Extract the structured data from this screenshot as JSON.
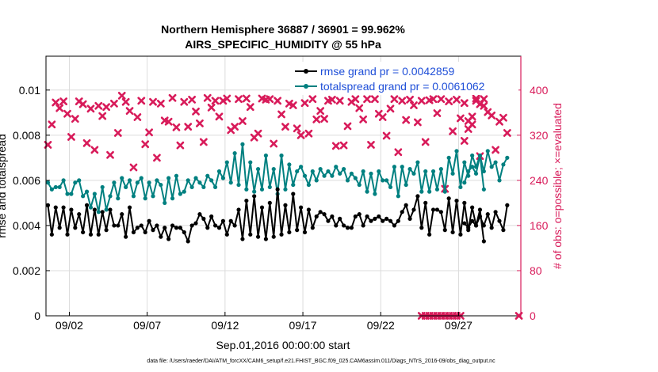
{
  "chart_data": {
    "type": "line",
    "title": "Northern Hemisphere 36887 / 36901 = 99.962%",
    "subtitle": "AIRS_SPECIFIC_HUMIDITY @ 55 hPa",
    "xlabel": "Sep.01,2016 00:00:00 start",
    "ylabel": "rmse and totalspread",
    "y2label": "# of obs: o=possible; ×=evaluated",
    "footnote": "data file: /Users/raeder/DAI/ATM_forcXX/CAM6_setup/f.e21.FHIST_BGC.f09_025.CAM6assim.011/Diags_NTrS_2016-09/obs_diag_output.nc",
    "xlim": [
      0.5,
      31.0
    ],
    "ylim": [
      0,
      0.0115
    ],
    "y2lim": [
      0,
      460
    ],
    "x_ticks": [
      2,
      7,
      12,
      17,
      22,
      27
    ],
    "x_tick_labels": [
      "09/02",
      "09/07",
      "09/12",
      "09/17",
      "09/22",
      "09/27"
    ],
    "y_ticks": [
      0,
      0.002,
      0.004,
      0.006,
      0.008,
      0.01
    ],
    "y_tick_labels": [
      "0",
      "0.002",
      "0.004",
      "0.006",
      "0.008",
      "0.01"
    ],
    "y2_ticks": [
      0,
      80,
      160,
      240,
      320,
      400
    ],
    "y2_tick_labels": [
      "0",
      "80",
      "160",
      "240",
      "320",
      "400"
    ],
    "grid": true,
    "legend_position": "top-right",
    "series": [
      {
        "name": "rmse grand pr = 0.0042859",
        "color": "#000000",
        "marker": "circle",
        "axis": "left",
        "segments": [
          {
            "x_start": 0.625,
            "dx": 0.25,
            "values": [
              0.0049,
              0.0036,
              0.0048,
              0.0039,
              0.0048,
              0.0036,
              0.0047,
              0.0039,
              0.0045,
              0.0037,
              0.0049,
              0.0036,
              0.0047,
              0.0036,
              0.0046,
              0.0038,
              0.0047,
              0.004,
              0.004,
              0.0045,
              0.0035,
              0.0048,
              0.0037,
              0.0039,
              0.004,
              0.0037,
              0.0042,
              0.0038,
              0.004,
              0.0035,
              0.0039,
              0.0034,
              0.004,
              0.0039,
              0.0039,
              0.0037,
              0.0033,
              0.004,
              0.0041,
              0.0045,
              0.0043,
              0.0039,
              0.0044,
              0.004,
              0.0039,
              0.0042,
              0.0036,
              0.0042,
              0.004,
              0.0047,
              0.0034,
              0.0051,
              0.0036,
              0.0053,
              0.0035,
              0.0048,
              0.0034,
              0.005,
              0.0035,
              0.0056,
              0.0036,
              0.0049,
              0.0037,
              0.0054,
              0.0038,
              0.0048,
              0.0037,
              0.0047,
              0.0039,
              0.0044,
              0.0046,
              0.0045,
              0.0042,
              0.0044,
              0.004,
              0.0043,
              0.004,
              0.0039,
              0.0039,
              0.0044,
              0.0045,
              0.004,
              0.0044,
              0.0042,
              0.0043,
              0.0044,
              0.0042,
              0.0043,
              0.0042,
              0.004,
              0.0042,
              0.0046,
              0.0049,
              0.0043,
              0.0047,
              0.0053,
              0.0039,
              0.005,
              0.0036,
              0.0047,
              0.0047,
              0.0046,
              0.0038,
              0.0052,
              0.0037,
              0.0051,
              0.0036,
              0.005,
              0.0038,
              0.0048,
              0.004,
              0.0047,
              0.0033
            ]
          },
          {
            "x_start": 27.375,
            "dx": 0.25,
            "values": [
              0.0041,
              0.0039,
              0.0042,
              0.004,
              0.0044,
              0.004,
              0.0045,
              0.0039,
              0.0046,
              0.0042,
              0.0038,
              0.0049
            ]
          }
        ]
      },
      {
        "name": "totalspread grand pr = 0.0061062",
        "color": "#008080",
        "marker": "circle",
        "axis": "left",
        "segments": [
          {
            "x_start": 0.625,
            "dx": 0.25,
            "values": [
              0.0059,
              0.0056,
              0.0057,
              0.0057,
              0.006,
              0.0054,
              0.0054,
              0.0059,
              0.006,
              0.0053,
              0.0055,
              0.0048,
              0.0054,
              0.0046,
              0.0057,
              0.0047,
              0.0053,
              0.0059,
              0.0052,
              0.0061,
              0.0057,
              0.006,
              0.0053,
              0.0059,
              0.0061,
              0.0052,
              0.0059,
              0.0053,
              0.006,
              0.0058,
              0.005,
              0.0061,
              0.0052,
              0.0062,
              0.0054,
              0.0055,
              0.006,
              0.0057,
              0.0061,
              0.0059,
              0.0057,
              0.0062,
              0.006,
              0.0057,
              0.0064,
              0.0061,
              0.0068,
              0.0059,
              0.0072,
              0.0058,
              0.0076,
              0.0056,
              0.0068,
              0.0055,
              0.0065,
              0.0056,
              0.0071,
              0.0057,
              0.0065,
              0.0054,
              0.0071,
              0.0056,
              0.0067,
              0.0058,
              0.0064,
              0.0066,
              0.0062,
              0.0058,
              0.0064,
              0.006,
              0.0065,
              0.0062,
              0.0064,
              0.0062,
              0.0066,
              0.0063,
              0.0065,
              0.006,
              0.0063,
              0.0061,
              0.0058,
              0.0064,
              0.0055,
              0.0063,
              0.0054,
              0.0064,
              0.006,
              0.006,
              0.0057,
              0.0066,
              0.0053,
              0.0066,
              0.0058,
              0.0065,
              0.0063,
              0.0068,
              0.0055,
              0.0064,
              0.0055,
              0.0064,
              0.0056,
              0.0065,
              0.0055,
              0.007,
              0.0063,
              0.0073,
              0.0057,
              0.0068,
              0.0062,
              0.0071,
              0.0066,
              0.0071,
              0.0056
            ]
          },
          {
            "x_start": 27.375,
            "dx": 0.25,
            "values": [
              0.0059,
              0.0064,
              0.0066,
              0.0063,
              0.0071,
              0.0064,
              0.0073,
              0.0066,
              0.0068,
              0.006,
              0.0067,
              0.007
            ]
          }
        ]
      },
      {
        "name": "# of obs evaluated",
        "color": "#d81b5a",
        "marker": "x",
        "axis": "right",
        "segments": [
          {
            "x_start": 0.625,
            "dx": 0.25,
            "values": [
              303,
              339,
              378,
              368,
              380,
              358,
              317,
              349,
              380,
              375,
              306,
              367,
              294,
              372,
              354,
              370,
              285,
              376,
              324,
              390,
              379,
              363,
              263,
              352,
              381,
              304,
              325,
              379,
              280,
              376,
              346,
              344,
              386,
              334,
              302,
              379,
              335,
              383,
              362,
              341,
              308,
              386,
              369,
              381,
              353,
              381,
              385,
              329,
              335,
              384,
              345,
              385,
              370,
              316,
              323,
              385,
              383,
              384,
              305,
              381,
              357,
              335,
              376,
              373,
              332,
              320,
              377,
              323,
              384,
              348,
              363,
              349,
              381,
              383,
              301,
              381,
              302,
              336,
              379,
              384,
              368,
              348,
              384,
              303,
              384,
              358,
              352,
              319,
              367,
              384,
              290,
              381,
              347,
              383,
              373,
              343,
              381,
              308,
              382,
              384,
              359,
              384,
              225,
              380,
              327,
              383,
              350,
              377,
              331,
              339,
              381,
              375,
              384
            ]
          },
          {
            "x_start": 27.375,
            "dx": 0.25,
            "values": [
              310,
              345,
              353,
              385,
              283,
              372,
              361,
              355,
              294,
              344,
              351,
              324
            ]
          }
        ]
      },
      {
        "name": "# of obs possible (zero)",
        "color": "#d81b5a",
        "marker": "x",
        "axis": "right",
        "segments": [
          {
            "x_start": 24.625,
            "dx": 0.25,
            "values": [
              0,
              0,
              0,
              0,
              0,
              0,
              0,
              0,
              0,
              0,
              0
            ]
          },
          {
            "x_start": 30.875,
            "dx": 0.25,
            "values": [
              0
            ]
          }
        ]
      }
    ]
  },
  "colors": {
    "rmse": "#000000",
    "spread": "#008080",
    "obs": "#d81b5a",
    "legend_text": "#1f4fd8",
    "grid": "#dcdcdc",
    "axis": "#000000"
  }
}
